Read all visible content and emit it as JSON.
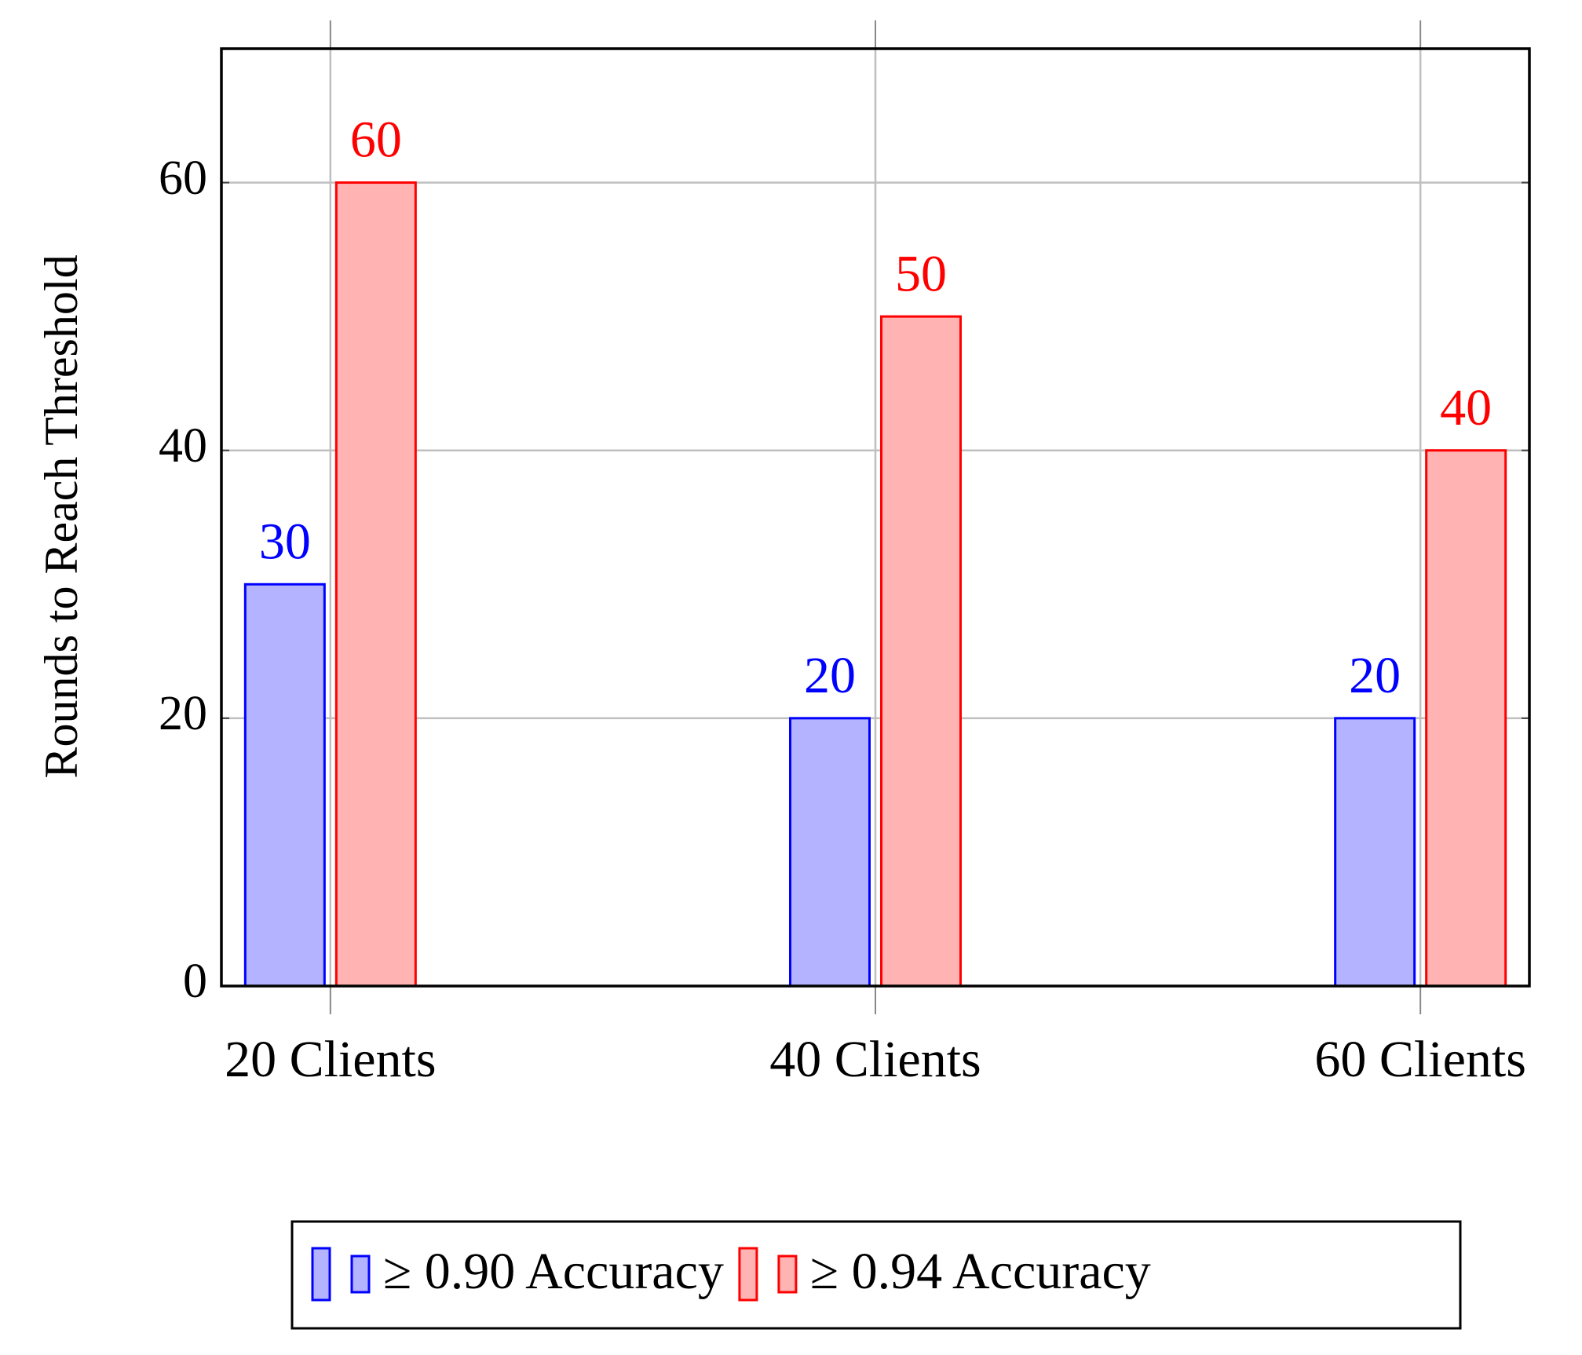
{
  "chart_data": {
    "type": "bar",
    "y_label": "Rounds to Reach Threshold",
    "categories": [
      "20 Clients",
      "40 Clients",
      "60 Clients"
    ],
    "series": [
      {
        "name": "≥ 0.90 Accuracy",
        "color": "#0000ff",
        "fill": "#b3b3ff",
        "values": [
          30,
          20,
          20
        ]
      },
      {
        "name": "≥ 0.94 Accuracy",
        "color": "#ff0000",
        "fill": "#ffb3b3",
        "values": [
          60,
          50,
          40
        ]
      }
    ],
    "ylim": [
      0,
      70
    ],
    "yticks": [
      0,
      20,
      40,
      60
    ],
    "grid": true,
    "legend": "bottom"
  }
}
